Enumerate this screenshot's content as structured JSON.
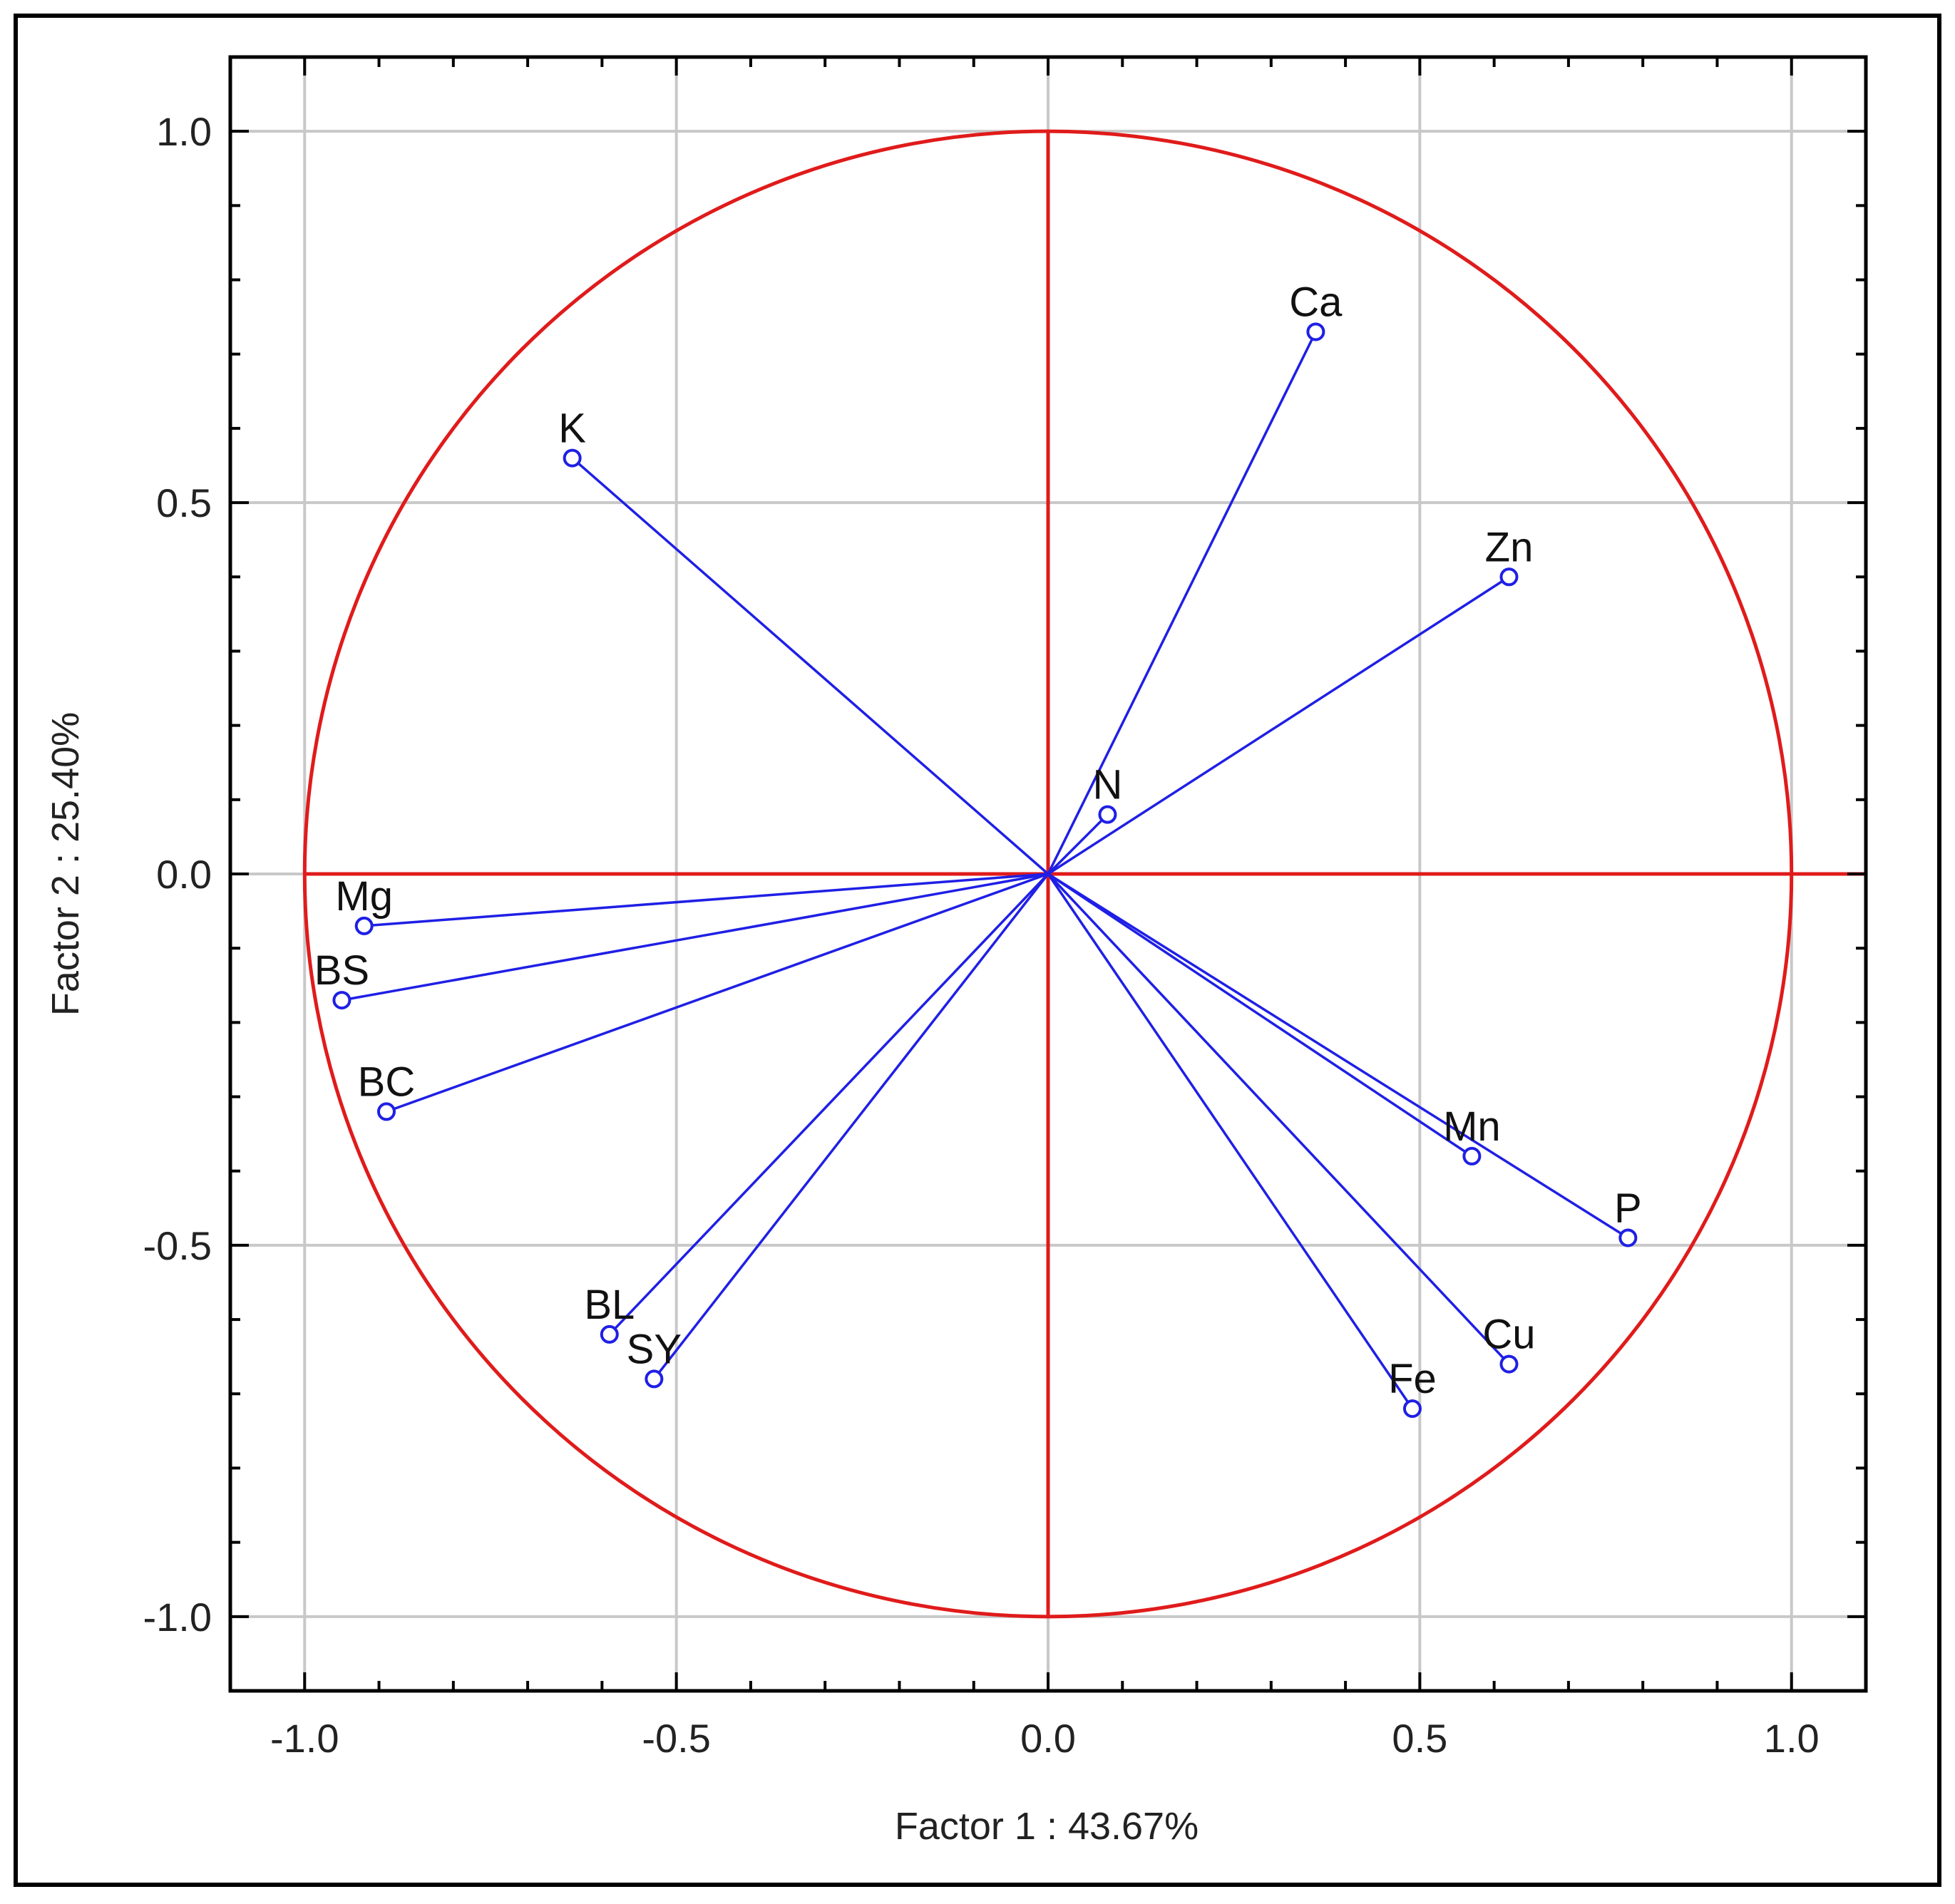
{
  "chart_data": {
    "type": "scatter",
    "subtype": "pca-correlation-circle",
    "title": "",
    "xlabel": "Factor 1 : 43.67%",
    "ylabel": "Factor 2 : 25.40%",
    "xlim": [
      -1.1,
      1.1
    ],
    "ylim": [
      -1.1,
      1.1
    ],
    "xticks": [
      -1.0,
      -0.5,
      0.0,
      0.5,
      1.0
    ],
    "yticks": [
      -1.0,
      -0.5,
      0.0,
      0.5,
      1.0
    ],
    "xtick_labels": [
      "-1.0",
      "-0.5",
      "0.0",
      "0.5",
      "1.0"
    ],
    "ytick_labels": [
      "-1.0",
      "-0.5",
      "0.0",
      "0.5",
      "1.0"
    ],
    "grid": true,
    "unit_circle": true,
    "points": [
      {
        "label": "Ca",
        "x": 0.36,
        "y": 0.73
      },
      {
        "label": "K",
        "x": -0.64,
        "y": 0.56
      },
      {
        "label": "Zn",
        "x": 0.62,
        "y": 0.4
      },
      {
        "label": "N",
        "x": 0.08,
        "y": 0.08
      },
      {
        "label": "Mg",
        "x": -0.92,
        "y": -0.07
      },
      {
        "label": "BS",
        "x": -0.95,
        "y": -0.17
      },
      {
        "label": "BC",
        "x": -0.89,
        "y": -0.32
      },
      {
        "label": "Mn",
        "x": 0.57,
        "y": -0.38
      },
      {
        "label": "P",
        "x": 0.78,
        "y": -0.49
      },
      {
        "label": "BL",
        "x": -0.59,
        "y": -0.62
      },
      {
        "label": "SY",
        "x": -0.53,
        "y": -0.68
      },
      {
        "label": "Cu",
        "x": 0.62,
        "y": -0.66
      },
      {
        "label": "Fe",
        "x": 0.49,
        "y": -0.72
      }
    ]
  },
  "colors": {
    "vectors": "#1f1fe6",
    "circle": "#e01b1b",
    "axes_cross": "#e01b1b",
    "grid": "#c8c8c8",
    "frame": "#000000"
  }
}
